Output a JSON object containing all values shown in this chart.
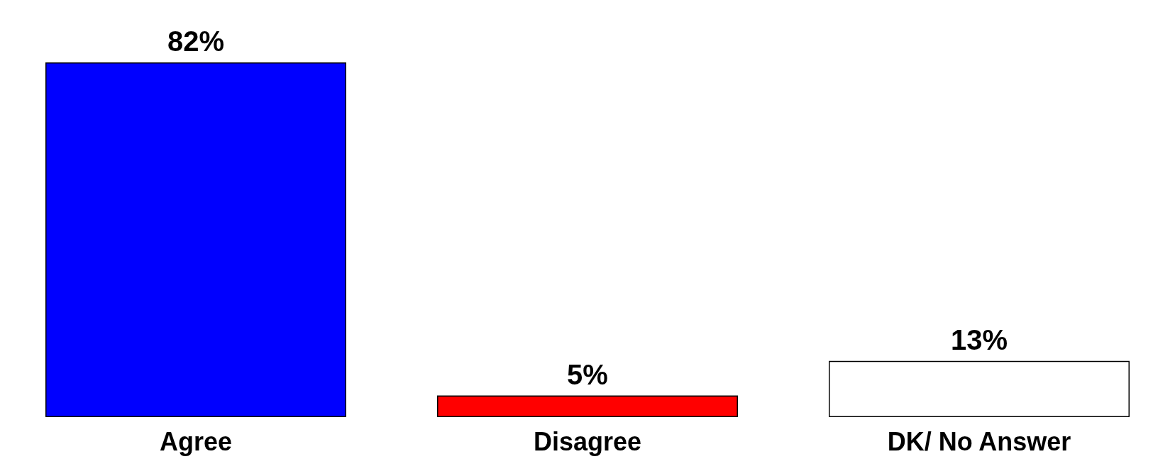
{
  "chart_data": {
    "type": "bar",
    "categories": [
      "Agree",
      "Disagree",
      "DK/ No Answer"
    ],
    "values": [
      82,
      5,
      13
    ],
    "colors": [
      "#0000ff",
      "#ff0000",
      "#ffffff"
    ],
    "value_labels": [
      "82%",
      "5%",
      "13%"
    ]
  }
}
